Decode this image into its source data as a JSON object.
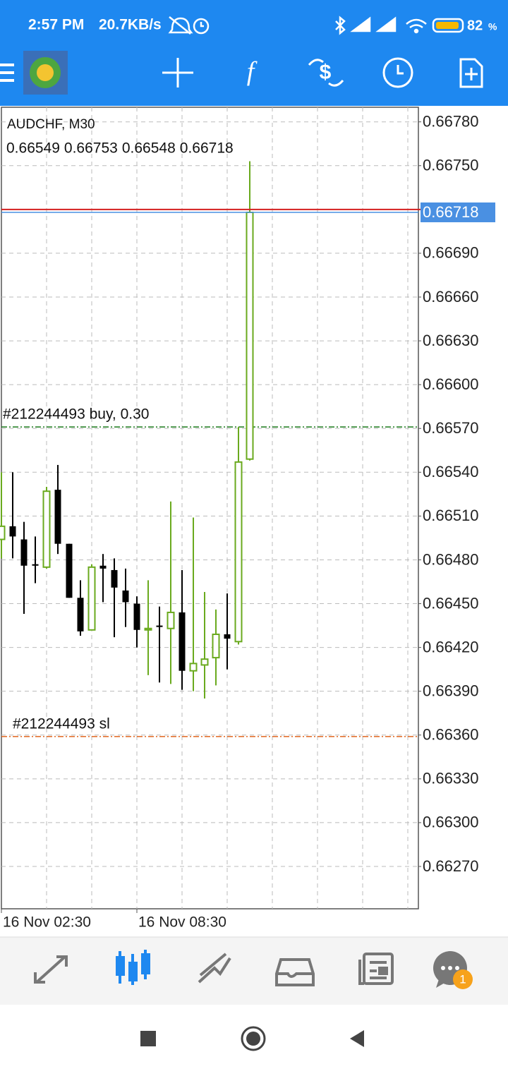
{
  "status_bar": {
    "time": "2:57 PM",
    "speed": "20.7KB/s",
    "battery": "82",
    "battery_unit": "%"
  },
  "chart_data": {
    "type": "candlestick",
    "title": "AUDCHF, M30",
    "categories": [
      "16 Nov 02:30",
      null,
      null,
      null,
      null,
      null,
      null,
      null,
      null,
      null,
      null,
      null,
      "16 Nov 08:30",
      null,
      null,
      null,
      null,
      null,
      null,
      null,
      null,
      null,
      null
    ],
    "open": [
      0.66494,
      0.66503,
      0.66494,
      0.66477,
      0.66475,
      0.66528,
      0.66491,
      0.66454,
      0.66432,
      0.66476,
      0.66473,
      0.66459,
      0.6645,
      0.66432,
      0.66435,
      0.66433,
      0.66444,
      0.66404,
      0.66408,
      0.66413,
      0.66429,
      0.66424,
      0.66549
    ],
    "high": [
      0.6654,
      0.6654,
      0.66506,
      0.66496,
      0.6653,
      0.66545,
      0.66491,
      0.66466,
      0.66477,
      0.66484,
      0.66481,
      0.66474,
      0.66455,
      0.66466,
      0.66448,
      0.6652,
      0.66473,
      0.66509,
      0.66458,
      0.66446,
      0.66457,
      0.66571,
      0.66753
    ],
    "low": [
      0.66481,
      0.66481,
      0.66443,
      0.66464,
      0.66474,
      0.66484,
      0.66454,
      0.66428,
      0.66432,
      0.66451,
      0.66427,
      0.66434,
      0.6642,
      0.66401,
      0.66396,
      0.66395,
      0.66391,
      0.6639,
      0.66385,
      0.66394,
      0.66405,
      0.66422,
      0.66548
    ],
    "close": [
      0.66503,
      0.66496,
      0.66476,
      0.66476,
      0.66527,
      0.66491,
      0.66454,
      0.66431,
      0.66475,
      0.66474,
      0.66461,
      0.66451,
      0.66432,
      0.66433,
      0.66434,
      0.66444,
      0.66404,
      0.66409,
      0.66412,
      0.66429,
      0.66426,
      0.66547,
      0.66718
    ],
    "up_color": "#6aaa1e",
    "down_color": "#000000",
    "ylim": [
      0.66241,
      0.6679
    ],
    "yticks": [
      {
        "value": 0.6678,
        "label": "0.66780"
      },
      {
        "value": 0.6675,
        "label": "0.66750"
      },
      {
        "value": 0.6669,
        "label": "0.66690"
      },
      {
        "value": 0.6666,
        "label": "0.66660"
      },
      {
        "value": 0.6663,
        "label": "0.66630"
      },
      {
        "value": 0.666,
        "label": "0.66600"
      },
      {
        "value": 0.6657,
        "label": "0.66570"
      },
      {
        "value": 0.6654,
        "label": "0.66540"
      },
      {
        "value": 0.6651,
        "label": "0.66510"
      },
      {
        "value": 0.6648,
        "label": "0.66480"
      },
      {
        "value": 0.6645,
        "label": "0.66450"
      },
      {
        "value": 0.6642,
        "label": "0.66420"
      },
      {
        "value": 0.6639,
        "label": "0.66390"
      },
      {
        "value": 0.6636,
        "label": "0.66360"
      },
      {
        "value": 0.6633,
        "label": "0.66330"
      },
      {
        "value": 0.663,
        "label": "0.66300"
      },
      {
        "value": 0.6627,
        "label": "0.66270"
      }
    ],
    "grid": true,
    "bid": 0.66718,
    "bid_color": "#4a90e2",
    "ask": 0.6672,
    "ask_color": "#d42020",
    "orders": [
      {
        "label": "#212244493 buy, 0.30",
        "price": 0.66571,
        "color": "#1b7a1b"
      },
      {
        "label": "#212244493 sl",
        "price": 0.66359,
        "color": "#e0661e"
      }
    ]
  },
  "bottom_nav": {
    "badge": "1"
  }
}
